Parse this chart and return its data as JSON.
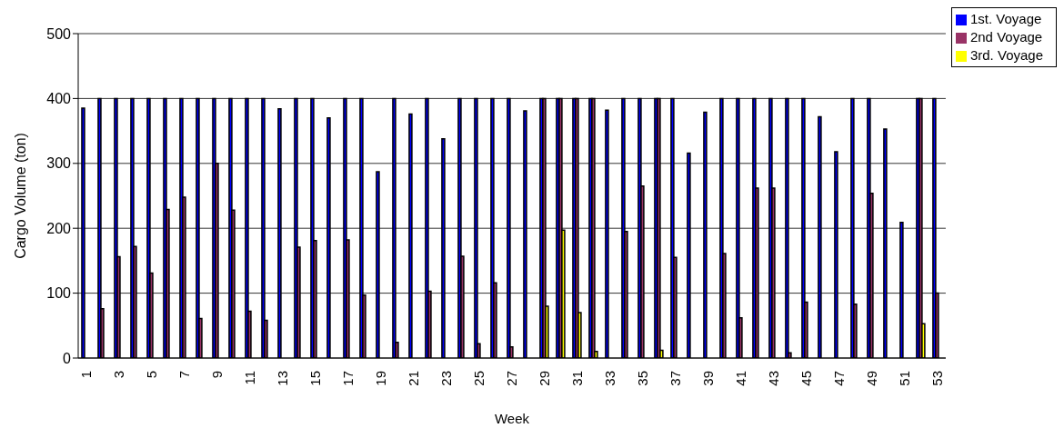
{
  "chart_data": {
    "type": "bar",
    "xlabel": "Week",
    "ylabel": "Cargo Volume (ton)",
    "categories": [
      "1",
      null,
      "3",
      null,
      "5",
      null,
      "7",
      null,
      "9",
      null,
      "11",
      null,
      "13",
      null,
      "15",
      null,
      "17",
      null,
      "19",
      null,
      "21",
      null,
      "23",
      null,
      "25",
      null,
      "27",
      null,
      "29",
      null,
      "31",
      null,
      "33",
      null,
      "35",
      null,
      "37",
      null,
      "39",
      null,
      "41",
      null,
      "43",
      null,
      "45",
      null,
      "47",
      null,
      "49",
      null,
      "51",
      null,
      "53"
    ],
    "series": [
      {
        "name": "1st. Voyage",
        "color": "#0000ff",
        "values": [
          385,
          400,
          400,
          400,
          400,
          400,
          400,
          400,
          400,
          400,
          400,
          400,
          384,
          400,
          400,
          370,
          400,
          400,
          287,
          400,
          376,
          400,
          338,
          400,
          400,
          400,
          400,
          381,
          400,
          400,
          400,
          400,
          382,
          400,
          400,
          400,
          400,
          316,
          379,
          400,
          400,
          400,
          400,
          400,
          400,
          372,
          318,
          400,
          400,
          353,
          209,
          400,
          400
        ]
      },
      {
        "name": "2nd Voyage",
        "color": "#993366",
        "values": [
          null,
          76,
          156,
          172,
          131,
          229,
          248,
          61,
          300,
          228,
          72,
          58,
          null,
          171,
          181,
          null,
          182,
          97,
          null,
          24,
          null,
          103,
          null,
          157,
          22,
          116,
          17,
          null,
          400,
          400,
          400,
          400,
          null,
          195,
          265,
          400,
          155,
          null,
          null,
          161,
          62,
          262,
          262,
          8,
          86,
          null,
          null,
          83,
          254,
          null,
          null,
          400,
          100
        ]
      },
      {
        "name": "3rd. Voyage",
        "color": "#ffff00",
        "values": [
          null,
          null,
          null,
          null,
          null,
          null,
          null,
          null,
          null,
          null,
          null,
          null,
          null,
          null,
          null,
          null,
          null,
          null,
          null,
          null,
          null,
          null,
          null,
          null,
          null,
          null,
          null,
          null,
          80,
          197,
          70,
          10,
          null,
          null,
          null,
          12,
          null,
          null,
          null,
          null,
          null,
          null,
          null,
          null,
          null,
          null,
          null,
          null,
          null,
          null,
          null,
          53,
          null
        ]
      }
    ],
    "ylim": [
      0,
      500
    ],
    "yticks": [
      0,
      100,
      200,
      300,
      400,
      500
    ],
    "grid": "y",
    "legend": "top right"
  }
}
